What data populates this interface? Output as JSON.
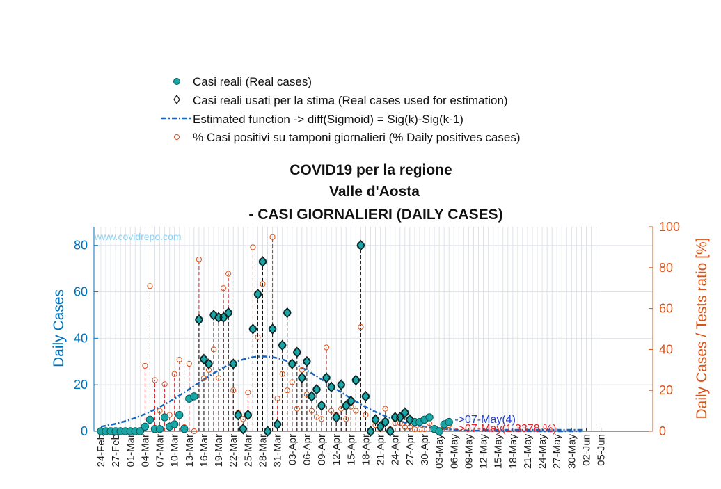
{
  "chart_data": {
    "type": "scatter",
    "title": [
      "COVID19 per la regione",
      "Valle d'Aosta",
      "- CASI GIORNALIERI (DAILY CASES)"
    ],
    "ylabel_left": "Daily Cases",
    "ylabel_right": "Daily Cases / Tests ratio [%]",
    "ylim_left": [
      0,
      88
    ],
    "ylim_right": [
      0,
      100
    ],
    "yticks_left": [
      0,
      20,
      40,
      60,
      80
    ],
    "yticks_right": [
      0,
      20,
      40,
      60,
      80,
      100
    ],
    "watermark": "www.covidrepo.com",
    "x_tick_labels": [
      "24-Feb",
      "27-Feb",
      "01-Mar",
      "04-Mar",
      "07-Mar",
      "10-Mar",
      "13-Mar",
      "16-Mar",
      "19-Mar",
      "22-Mar",
      "25-Mar",
      "28-Mar",
      "31-Mar",
      "03-Apr",
      "06-Apr",
      "09-Apr",
      "12-Apr",
      "15-Apr",
      "18-Apr",
      "21-Apr",
      "24-Apr",
      "27-Apr",
      "30-Apr",
      "03-May",
      "06-May",
      "09-May",
      "12-May",
      "15-May",
      "18-May",
      "21-May",
      "24-May",
      "27-May",
      "30-May",
      "02-Jun",
      "05-Jun"
    ],
    "x_start_date": "24-Feb",
    "grid": true,
    "legend_position": "top",
    "legend": [
      "Casi reali (Real cases)",
      "Casi reali usati per la stima (Real cases used for estimation)",
      "Estimated function -> diff(Sigmoid) = Sig(k)-Sig(k-1)",
      "% Casi positivi su tamponi giornalieri (% Daily positives cases)"
    ],
    "series": [
      {
        "name": "Casi reali (Real cases)",
        "axis": "left",
        "values": [
          0,
          0,
          0,
          0,
          0,
          0,
          0,
          0,
          0,
          2,
          5,
          1,
          1,
          6,
          2,
          3,
          7,
          1,
          14,
          15,
          48,
          31,
          29,
          50,
          49,
          49,
          51,
          29,
          7,
          1,
          7,
          44,
          59,
          73,
          0,
          44,
          3,
          37,
          51,
          29,
          34,
          23,
          30,
          15,
          18,
          11,
          23,
          19,
          6,
          20,
          11,
          13,
          22,
          80,
          15,
          0,
          5,
          2,
          4,
          0,
          6,
          6,
          8,
          5,
          4,
          4,
          5,
          6,
          1,
          0,
          3,
          4
        ]
      },
      {
        "name": "% Casi positivi su tamponi giornalieri (% Daily positives cases)",
        "axis": "right",
        "values": [
          0,
          0,
          0,
          0,
          0,
          0,
          0,
          0,
          0,
          32,
          71,
          25,
          10,
          23,
          8,
          28,
          35,
          2,
          33,
          0,
          84,
          26,
          30,
          40,
          26,
          70,
          77,
          20,
          9,
          6,
          19,
          90,
          46,
          72,
          0,
          95,
          16,
          28,
          20,
          24,
          11,
          30,
          18,
          10,
          7,
          6,
          41,
          10,
          8,
          11,
          6,
          12,
          10,
          51,
          8,
          0,
          3,
          1,
          11,
          1,
          4,
          4,
          2,
          2,
          1,
          1,
          1,
          4,
          1,
          0,
          2,
          3
        ]
      },
      {
        "name": "Estimated function -> diff(Sigmoid) = Sig(k)-Sig(k-1)",
        "axis": "left",
        "peak_index": 33,
        "peak_value": 32.2,
        "sigma": 14
      }
    ],
    "estimation_range": [
      20,
      63
    ],
    "annotations": [
      {
        "text": "->07-May(4)",
        "index": 73,
        "value": 3.6,
        "color": "#1f3fd0"
      },
      {
        "text": "->07-May(1.3378 %)",
        "index": 73,
        "value": 0,
        "color": "#e0202a"
      }
    ]
  }
}
